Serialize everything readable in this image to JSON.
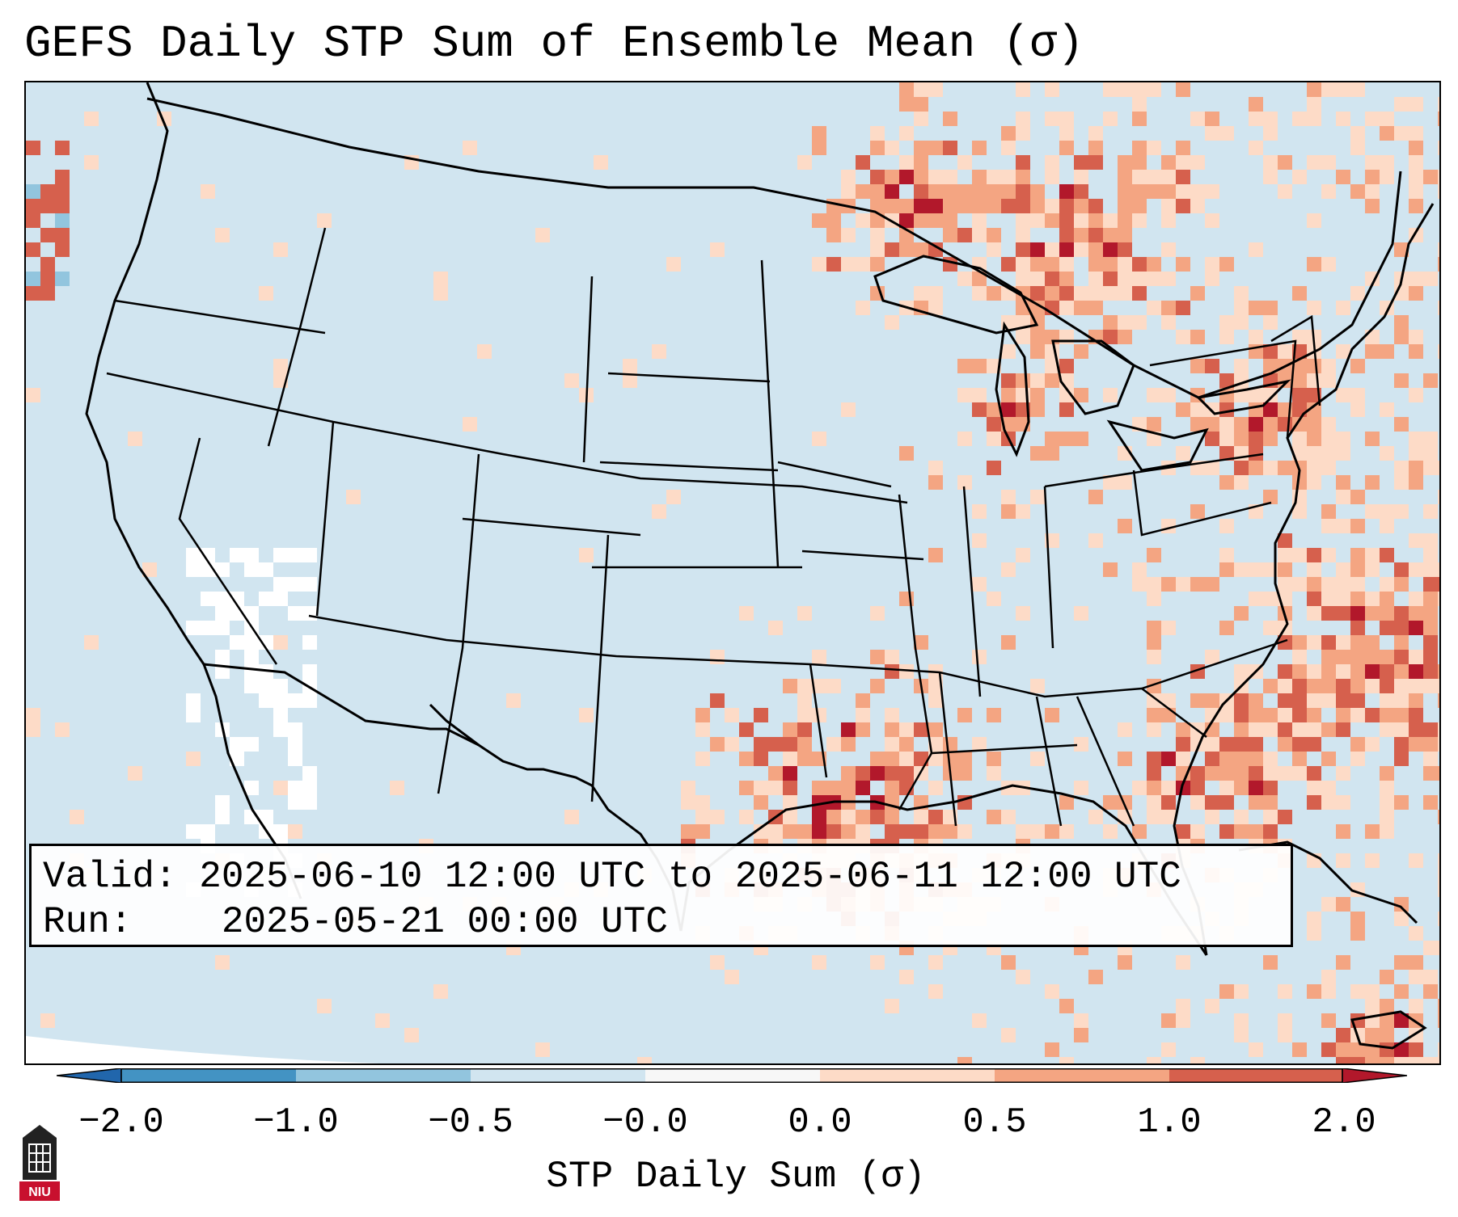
{
  "title": "GEFS Daily STP Sum of Ensemble Mean (σ)",
  "info": {
    "valid_label": "Valid:",
    "valid_value": "2025-06-10 12:00 UTC to 2025-06-11 12:00 UTC",
    "run_label": "Run:",
    "run_value": "2025-05-21 00:00 UTC"
  },
  "colorbar": {
    "label": "STP Daily Sum (σ)",
    "ticks": [
      "−2.0",
      "−1.0",
      "−0.5",
      "−0.0",
      "0.0",
      "0.5",
      "1.0",
      "2.0"
    ],
    "colors": [
      "#2166ac",
      "#4393c3",
      "#92c5de",
      "#d1e5f0",
      "#f7f7f7",
      "#fddbc7",
      "#f4a582",
      "#d6604d",
      "#b2182b"
    ]
  },
  "colors": {
    "land_background": "#d1e5f0",
    "near_zero": "#ffffff",
    "positive_low": "#fddbc7",
    "positive_mid": "#f4a582",
    "positive_high": "#d6604d",
    "positive_max": "#b2182b",
    "negative_low": "#92c5de"
  },
  "logo": {
    "text": "NIU",
    "icon": "university-tower-logo"
  }
}
